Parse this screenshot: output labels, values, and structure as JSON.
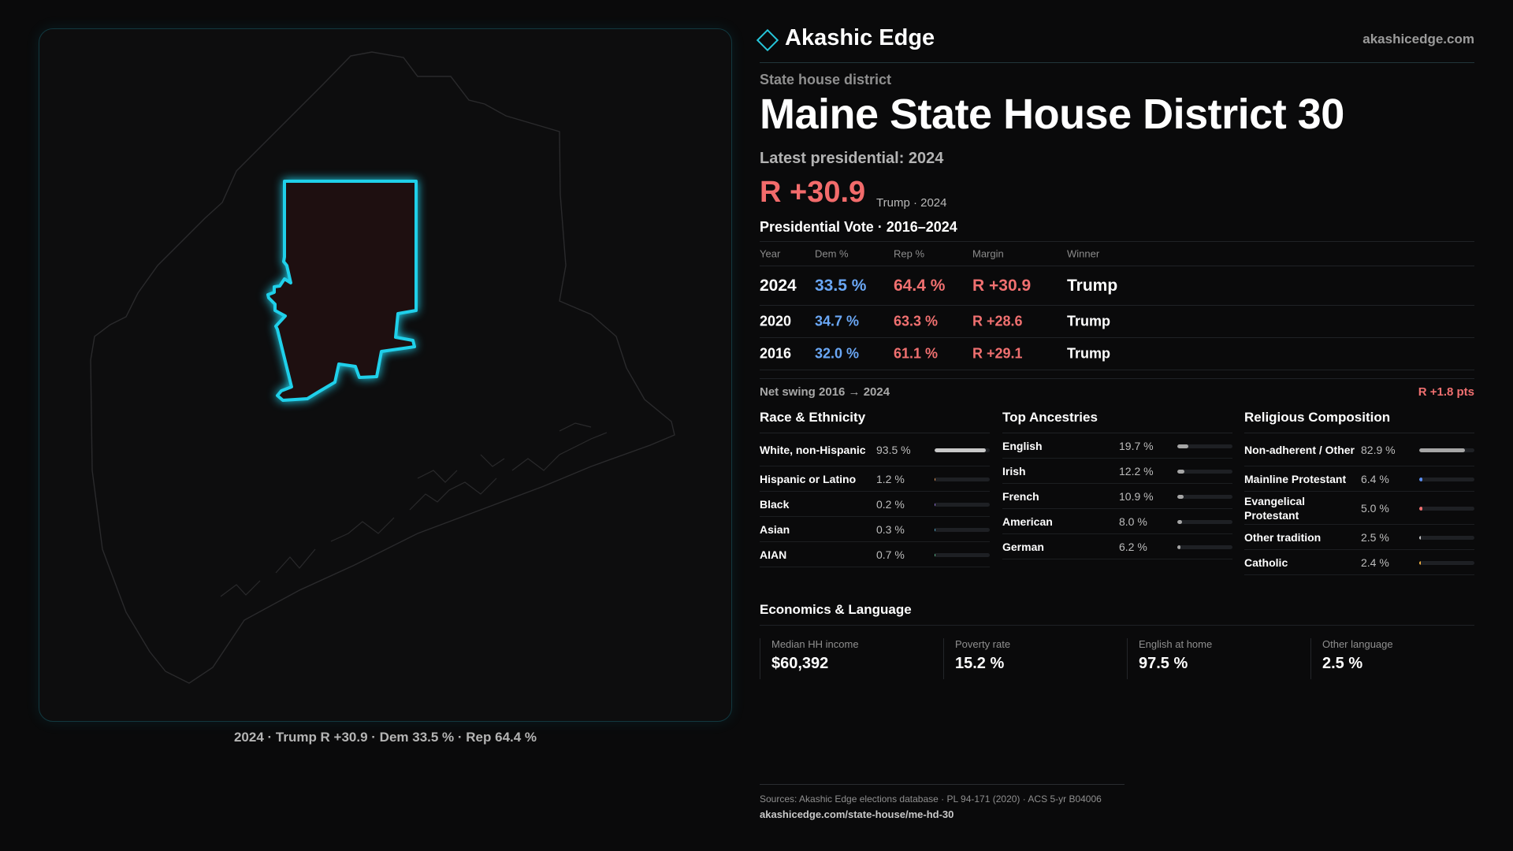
{
  "brand": {
    "name": "Akashic Edge",
    "url": "akashicedge.com"
  },
  "district": {
    "eyebrow": "State house district",
    "title": "Maine State House District 30",
    "latest_label": "Latest presidential: 2024",
    "headline_margin": "R +30.9",
    "headline_sub": "Trump · 2024"
  },
  "map": {
    "caption": "2024 · Trump R +30.9 · Dem 33.5 % · Rep 64.4 %",
    "colors": {
      "state_outline": "#2a2a2c",
      "district_outline": "#1fd0ea",
      "district_fill": "#1e0f10"
    }
  },
  "vote_table": {
    "title": "Presidential Vote · 2016–2024",
    "headers": [
      "Year",
      "Dem %",
      "Rep %",
      "Margin",
      "Winner"
    ],
    "rows": [
      {
        "year": "2024",
        "dem": "33.5 %",
        "rep": "64.4 %",
        "margin": "R +30.9",
        "winner": "Trump"
      },
      {
        "year": "2020",
        "dem": "34.7 %",
        "rep": "63.3 %",
        "margin": "R +28.6",
        "winner": "Trump"
      },
      {
        "year": "2016",
        "dem": "32.0 %",
        "rep": "61.1 %",
        "margin": "R +29.1",
        "winner": "Trump"
      }
    ],
    "swing_label": "Net swing 2016 → 2024",
    "swing_value": "R +1.8 pts"
  },
  "race": {
    "title": "Race & Ethnicity",
    "items": [
      {
        "label": "White, non-Hispanic",
        "value": "93.5 %",
        "pct": 93.5,
        "color": "#c8c8c8"
      },
      {
        "label": "Hispanic or Latino",
        "value": "1.2 %",
        "pct": 1.2,
        "color": "#f0a060"
      },
      {
        "label": "Black",
        "value": "0.2 %",
        "pct": 0.2,
        "color": "#9a78e0"
      },
      {
        "label": "Asian",
        "value": "0.3 %",
        "pct": 0.3,
        "color": "#5ab0d0"
      },
      {
        "label": "AIAN",
        "value": "0.7 %",
        "pct": 0.7,
        "color": "#60c090"
      }
    ]
  },
  "ancestry": {
    "title": "Top Ancestries",
    "items": [
      {
        "label": "English",
        "value": "19.7 %",
        "pct": 19.7,
        "color": "#a6a6a6"
      },
      {
        "label": "Irish",
        "value": "12.2 %",
        "pct": 12.2,
        "color": "#a6a6a6"
      },
      {
        "label": "French",
        "value": "10.9 %",
        "pct": 10.9,
        "color": "#a6a6a6"
      },
      {
        "label": "American",
        "value": "8.0 %",
        "pct": 8.0,
        "color": "#a6a6a6"
      },
      {
        "label": "German",
        "value": "6.2 %",
        "pct": 6.2,
        "color": "#a6a6a6"
      }
    ]
  },
  "religion": {
    "title": "Religious Composition",
    "items": [
      {
        "label": "Non-adherent / Other",
        "value": "82.9 %",
        "pct": 82.9,
        "color": "#a6a6a6"
      },
      {
        "label": "Mainline Protestant",
        "value": "6.4 %",
        "pct": 6.4,
        "color": "#5a8df0"
      },
      {
        "label": "Evangelical Protestant",
        "value": "5.0 %",
        "pct": 5.0,
        "color": "#f07070"
      },
      {
        "label": "Other tradition",
        "value": "2.5 %",
        "pct": 2.5,
        "color": "#c8c8c8"
      },
      {
        "label": "Catholic",
        "value": "2.4 %",
        "pct": 2.4,
        "color": "#f0b040"
      }
    ]
  },
  "economics": {
    "title": "Economics & Language",
    "items": [
      {
        "label": "Median HH income",
        "value": "$60,392"
      },
      {
        "label": "Poverty rate",
        "value": "15.2 %"
      },
      {
        "label": "English at home",
        "value": "97.5 %"
      },
      {
        "label": "Other language",
        "value": "2.5 %"
      }
    ]
  },
  "footer": {
    "sources": "Sources: Akashic Edge elections database · PL 94-171 (2020) · ACS 5-yr B04006",
    "url": "akashicedge.com/state-house/me-hd-30"
  }
}
